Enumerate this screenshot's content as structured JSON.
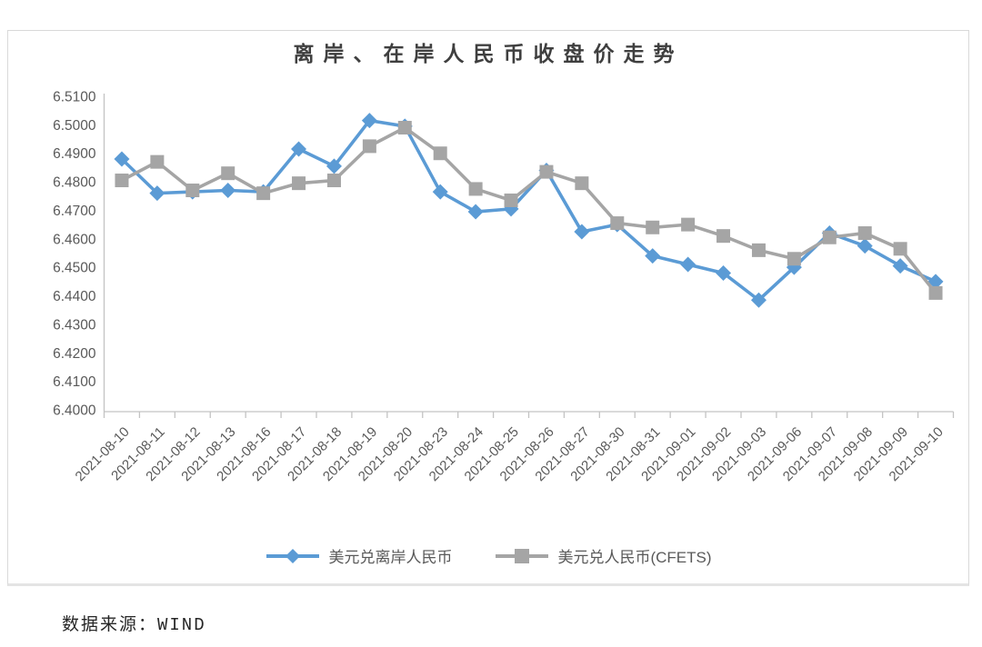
{
  "source_note": "数据来源：WIND",
  "chart_data": {
    "type": "line",
    "title": "离岸、在岸人民币收盘价走势",
    "categories": [
      "2021-08-10",
      "2021-08-11",
      "2021-08-12",
      "2021-08-13",
      "2021-08-16",
      "2021-08-17",
      "2021-08-18",
      "2021-08-19",
      "2021-08-20",
      "2021-08-23",
      "2021-08-24",
      "2021-08-25",
      "2021-08-26",
      "2021-08-27",
      "2021-08-30",
      "2021-08-31",
      "2021-09-01",
      "2021-09-02",
      "2021-09-03",
      "2021-09-06",
      "2021-09-07",
      "2021-09-08",
      "2021-09-09",
      "2021-09-10"
    ],
    "series": [
      {
        "name": "美元兑离岸人民币",
        "marker": "diamond",
        "color": "#5b9bd5",
        "values": [
          6.488,
          6.476,
          6.4765,
          6.477,
          6.4765,
          6.4915,
          6.4855,
          6.5015,
          6.4995,
          6.4765,
          6.4695,
          6.4705,
          6.484,
          6.4625,
          6.465,
          6.454,
          6.451,
          6.448,
          6.4385,
          6.45,
          6.462,
          6.4575,
          6.4505,
          6.445
        ]
      },
      {
        "name": "美元兑人民币(CFETS)",
        "marker": "square",
        "color": "#a5a5a5",
        "values": [
          6.4805,
          6.487,
          6.477,
          6.483,
          6.476,
          6.4795,
          6.4805,
          6.4925,
          6.499,
          6.49,
          6.4775,
          6.4735,
          6.4835,
          6.4795,
          6.4655,
          6.464,
          6.465,
          6.461,
          6.456,
          6.453,
          6.4605,
          6.462,
          6.4565,
          6.441
        ]
      }
    ],
    "ylim": [
      6.4,
      6.51
    ],
    "y_tick_step": 0.01,
    "y_tick_labels": [
      "6.5100",
      "6.5000",
      "6.4900",
      "6.4800",
      "6.4700",
      "6.4600",
      "6.4500",
      "6.4400",
      "6.4300",
      "6.4200",
      "6.4100",
      "6.4000"
    ],
    "grid": false,
    "legend_position": "bottom",
    "axis_color": "#c3c3c3",
    "tick_label_color": "#595959"
  }
}
